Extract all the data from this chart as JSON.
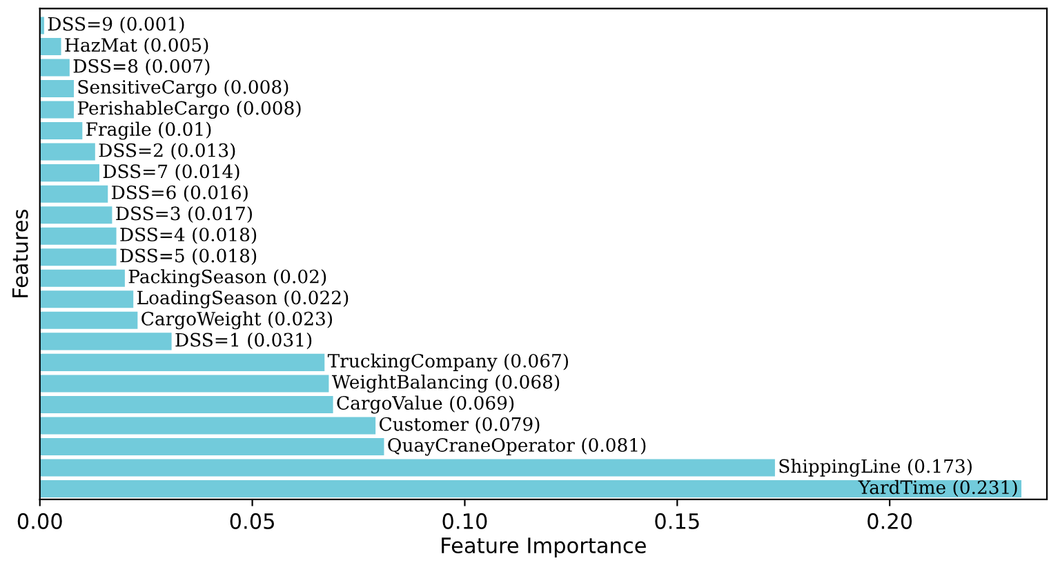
{
  "chart_data": {
    "type": "bar",
    "orientation": "horizontal",
    "xlabel": "Feature Importance",
    "ylabel": "Features",
    "categories": [
      null,
      null,
      null,
      null,
      null,
      null,
      null,
      null,
      null,
      null,
      null,
      null,
      null,
      null,
      null,
      null,
      null,
      null,
      null,
      null,
      null,
      null,
      null
    ],
    "values": [
      0.001,
      0.005,
      0.007,
      0.008,
      0.008,
      0.01,
      0.013,
      0.014,
      0.016,
      0.017,
      0.018,
      0.018,
      0.02,
      0.022,
      0.023,
      0.031,
      0.067,
      0.068,
      0.069,
      0.079,
      0.081,
      0.173,
      0.231
    ],
    "value_labels": [
      "DSS=9 (0.001)",
      "HazMat (0.005)",
      "DSS=8 (0.007)",
      "SensitiveCargo (0.008)",
      "PerishableCargo (0.008)",
      "Fragile (0.01)",
      "DSS=2 (0.013)",
      "DSS=7 (0.014)",
      "DSS=6 (0.016)",
      "DSS=3 (0.017)",
      "DSS=4 (0.018)",
      "DSS=5 (0.018)",
      "PackingSeason (0.02)",
      "LoadingSeason (0.022)",
      "CargoWeight (0.023)",
      "DSS=1 (0.031)",
      "TruckingCompany (0.067)",
      "WeightBalancing (0.068)",
      "CargoValue (0.069)",
      "Customer (0.079)",
      "QuayCraneOperator (0.081)",
      "ShippingLine (0.173)",
      "YardTime (0.231)"
    ],
    "color": "#72cbdb",
    "xlim": [
      0,
      0.237
    ],
    "xticks": [
      {
        "value": 0,
        "label": "0.00"
      },
      {
        "value": 0.05,
        "label": "0.05"
      },
      {
        "value": 0.1,
        "label": "0.10"
      },
      {
        "value": 0.15,
        "label": "0.15"
      },
      {
        "value": 0.2,
        "label": "0.20"
      }
    ],
    "tick_labels": "x",
    "grid": false,
    "legend": false
  }
}
